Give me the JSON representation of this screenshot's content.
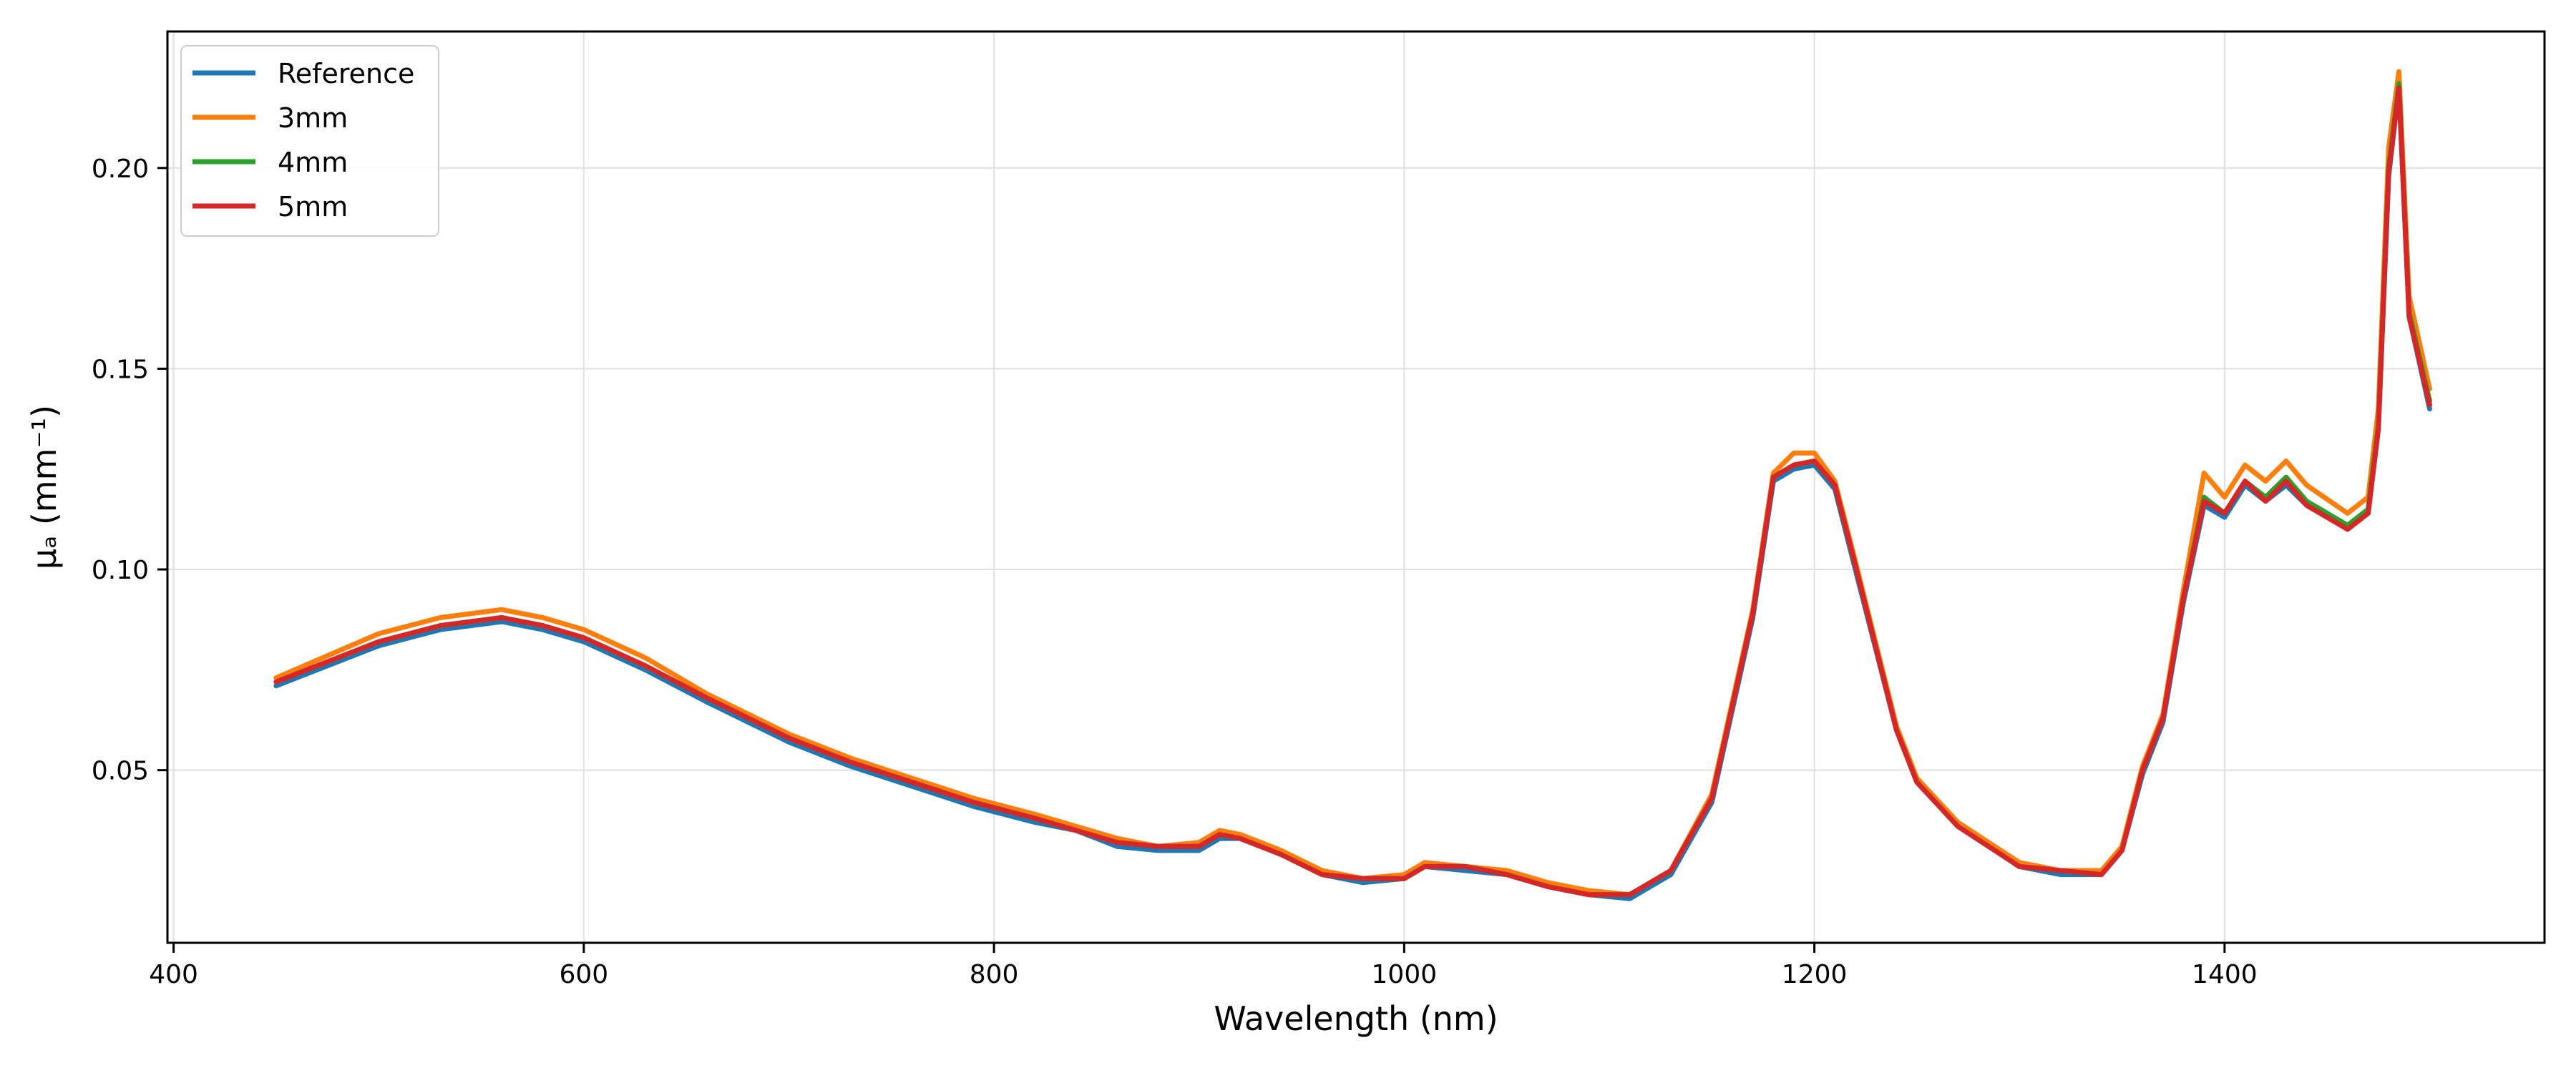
{
  "chart_data": {
    "type": "line",
    "title": "",
    "xlabel": "Wavelength (nm)",
    "ylabel": "μₐ (mm⁻¹)",
    "xlim": [
      397,
      1556
    ],
    "ylim": [
      0.007,
      0.234
    ],
    "xticks": [
      400,
      600,
      800,
      1000,
      1200,
      1400
    ],
    "yticks": [
      0.05,
      0.1,
      0.15,
      0.2
    ],
    "xtick_labels": [
      "400",
      "600",
      "800",
      "1000",
      "1200",
      "1400"
    ],
    "ytick_labels": [
      "0.05",
      "0.10",
      "0.15",
      "0.20"
    ],
    "grid": true,
    "legend": "top-left",
    "x": [
      450,
      500,
      530,
      560,
      580,
      600,
      630,
      660,
      700,
      730,
      760,
      790,
      820,
      840,
      860,
      880,
      900,
      910,
      920,
      940,
      960,
      980,
      1000,
      1010,
      1030,
      1050,
      1070,
      1090,
      1110,
      1130,
      1150,
      1170,
      1180,
      1190,
      1200,
      1210,
      1220,
      1240,
      1250,
      1270,
      1300,
      1320,
      1340,
      1350,
      1360,
      1370,
      1380,
      1390,
      1400,
      1410,
      1420,
      1430,
      1440,
      1460,
      1470,
      1475,
      1480,
      1485,
      1490,
      1500
    ],
    "series": [
      {
        "name": "Reference",
        "color": "#1f77b4",
        "values": [
          0.071,
          0.081,
          0.085,
          0.087,
          0.085,
          0.082,
          0.075,
          0.067,
          0.057,
          0.051,
          0.046,
          0.041,
          0.037,
          0.035,
          0.031,
          0.03,
          0.03,
          0.033,
          0.033,
          0.029,
          0.024,
          0.022,
          0.023,
          0.026,
          0.025,
          0.024,
          0.021,
          0.019,
          0.018,
          0.024,
          0.042,
          0.088,
          0.122,
          0.125,
          0.126,
          0.12,
          0.1,
          0.06,
          0.047,
          0.036,
          0.026,
          0.024,
          0.024,
          0.03,
          0.049,
          0.062,
          0.092,
          0.116,
          0.113,
          0.121,
          0.117,
          0.121,
          0.116,
          0.11,
          0.114,
          0.135,
          0.198,
          0.22,
          0.163,
          0.14
        ]
      },
      {
        "name": "3mm",
        "color": "#ff7f0e",
        "values": [
          0.073,
          0.084,
          0.088,
          0.09,
          0.088,
          0.085,
          0.078,
          0.069,
          0.059,
          0.053,
          0.048,
          0.043,
          0.039,
          0.036,
          0.033,
          0.031,
          0.032,
          0.035,
          0.034,
          0.03,
          0.025,
          0.023,
          0.024,
          0.027,
          0.026,
          0.025,
          0.022,
          0.02,
          0.019,
          0.025,
          0.044,
          0.09,
          0.124,
          0.129,
          0.129,
          0.122,
          0.102,
          0.061,
          0.048,
          0.037,
          0.027,
          0.025,
          0.025,
          0.031,
          0.051,
          0.064,
          0.095,
          0.124,
          0.118,
          0.126,
          0.122,
          0.127,
          0.121,
          0.114,
          0.118,
          0.14,
          0.205,
          0.224,
          0.168,
          0.145
        ]
      },
      {
        "name": "4mm",
        "color": "#2ca02c",
        "values": [
          0.072,
          0.082,
          0.086,
          0.088,
          0.086,
          0.083,
          0.076,
          0.068,
          0.058,
          0.052,
          0.047,
          0.042,
          0.038,
          0.035,
          0.032,
          0.031,
          0.031,
          0.034,
          0.033,
          0.029,
          0.024,
          0.023,
          0.023,
          0.026,
          0.026,
          0.024,
          0.021,
          0.019,
          0.019,
          0.025,
          0.043,
          0.089,
          0.123,
          0.126,
          0.127,
          0.121,
          0.101,
          0.06,
          0.047,
          0.036,
          0.026,
          0.025,
          0.024,
          0.03,
          0.05,
          0.063,
          0.093,
          0.118,
          0.114,
          0.122,
          0.118,
          0.123,
          0.117,
          0.111,
          0.115,
          0.136,
          0.2,
          0.221,
          0.164,
          0.142
        ]
      },
      {
        "name": "5mm",
        "color": "#d62728",
        "values": [
          0.072,
          0.082,
          0.086,
          0.088,
          0.086,
          0.083,
          0.076,
          0.068,
          0.058,
          0.052,
          0.047,
          0.042,
          0.038,
          0.035,
          0.032,
          0.031,
          0.031,
          0.034,
          0.033,
          0.029,
          0.024,
          0.023,
          0.023,
          0.026,
          0.026,
          0.024,
          0.021,
          0.019,
          0.019,
          0.025,
          0.043,
          0.089,
          0.123,
          0.126,
          0.127,
          0.121,
          0.101,
          0.06,
          0.047,
          0.036,
          0.026,
          0.025,
          0.024,
          0.03,
          0.05,
          0.063,
          0.093,
          0.117,
          0.114,
          0.122,
          0.117,
          0.122,
          0.116,
          0.11,
          0.114,
          0.135,
          0.199,
          0.22,
          0.163,
          0.141
        ]
      }
    ]
  }
}
